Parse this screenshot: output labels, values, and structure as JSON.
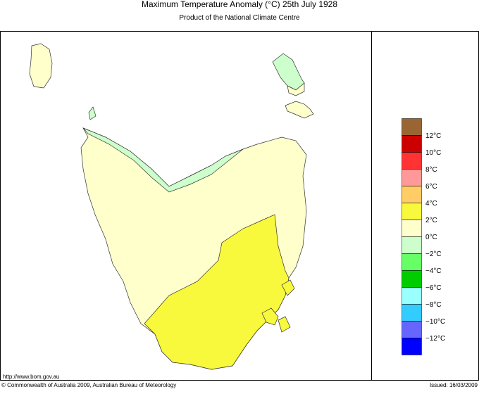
{
  "header": {
    "title": "Maximum Temperature Anomaly (°C)  25th July 1928",
    "subtitle": "Product of the National Climate Centre"
  },
  "legend": {
    "colors": [
      "#996633",
      "#cc0000",
      "#ff3333",
      "#ff9999",
      "#ffcc66",
      "#f8f83c",
      "#ffffcc",
      "#ccffcc",
      "#66ff66",
      "#00cc00",
      "#99ffff",
      "#33ccff",
      "#6666ff",
      "#0000ff"
    ],
    "labels": [
      "12°C",
      "10°C",
      "8°C",
      "6°C",
      "4°C",
      "2°C",
      "0°C",
      "−2°C",
      "−4°C",
      "−6°C",
      "−8°C",
      "−10°C",
      "−12°C"
    ]
  },
  "footer": {
    "url": "http://www.bom.gov.au",
    "copyright": "© Commonwealth of Australia 2009, Australian Bureau of Meteorology",
    "issued": "Issued: 16/03/2009"
  }
}
